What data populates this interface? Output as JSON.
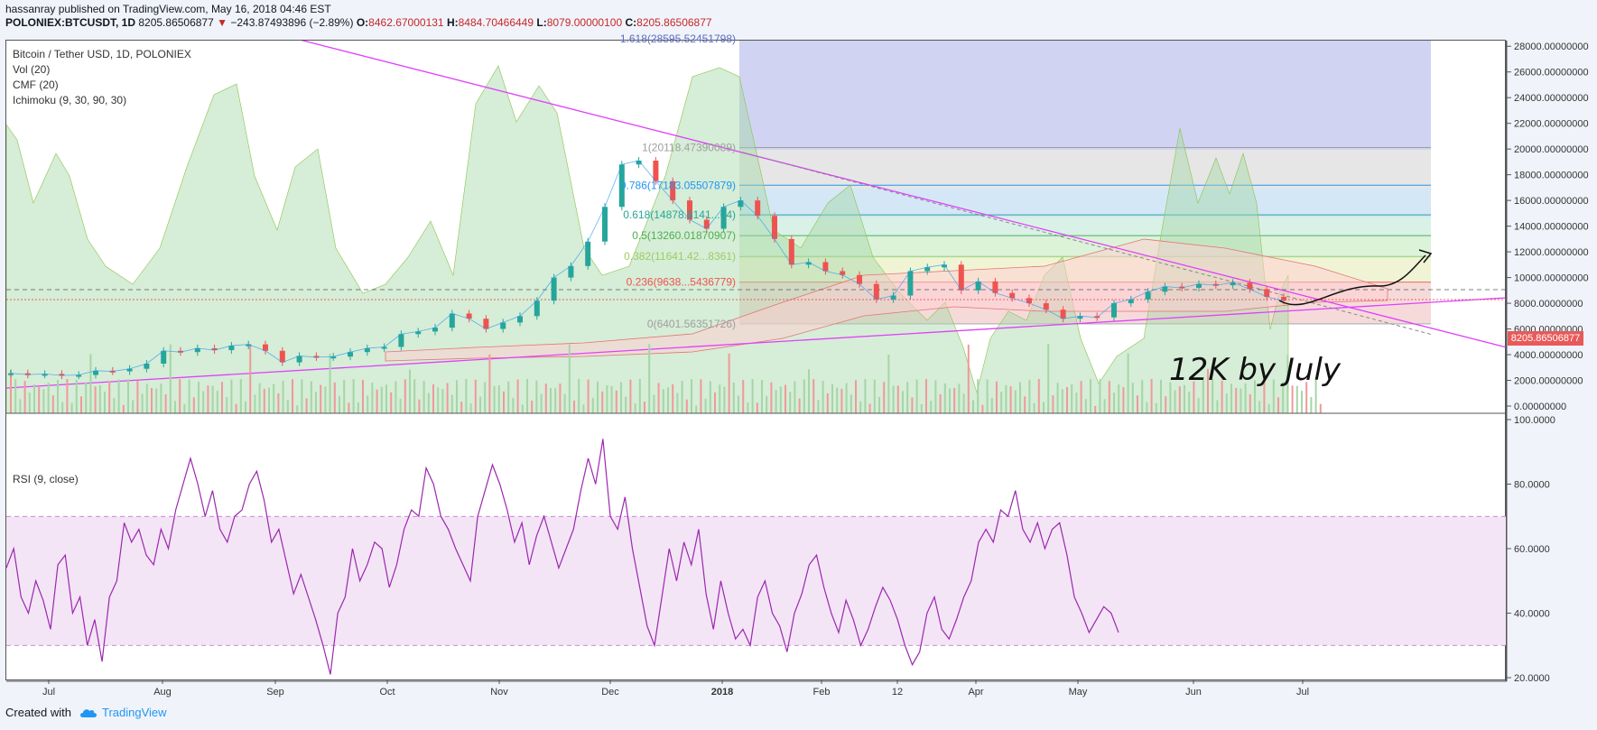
{
  "header": {
    "publisher": "hassanray",
    "published_text": "published on TradingView.com, May 16, 2018 04:46 EST",
    "symbol": "POLONIEX:BTCUSDT, 1D",
    "last": "8205.86506877",
    "change": "−243.87493896 (−2.89%)",
    "open_label": "O:",
    "open": "8462.67000131",
    "high_label": "H:",
    "high": "8484.70466449",
    "low_label": "L:",
    "low": "8079.00000100",
    "close_label": "C:",
    "close": "8205.86506877"
  },
  "legend": {
    "title": "Bitcoin / Tether USD, 1D, POLONIEX",
    "vol": "Vol (20)",
    "cmf": "CMF (20)",
    "ichimoku": "Ichimoku (9, 30, 90, 30)",
    "rsi": "RSI (9, close)"
  },
  "annotation_text": "12K by July",
  "price_badge": "8205.86506877",
  "footer": {
    "created": "Created with",
    "brand": "TradingView"
  },
  "colors": {
    "accent": "#2196f3",
    "price_down": "#c62828",
    "trendline": "#e040fb",
    "rsi_line": "#9c27b0",
    "rsi_band": "#f3e5f5",
    "vol_cloud": "#a5d6a7"
  },
  "chart_data": [
    {
      "type": "line",
      "title": "Bitcoin / Tether USD, 1D, POLONIEX",
      "x_ticks": [
        "Jul",
        "Aug",
        "Sep",
        "Oct",
        "Nov",
        "Dec",
        "2018",
        "Feb",
        "12",
        "Apr",
        "May",
        "Jun",
        "Jul"
      ],
      "y_ticks": [
        "28000.00000000",
        "26000.00000000",
        "24000.00000000",
        "22000.00000000",
        "20000.00000000",
        "18000.00000000",
        "16000.00000000",
        "14000.00000000",
        "12000.00000000",
        "10000.00000000",
        "8000.00000000",
        "6000.00000000",
        "4000.00000000",
        "2000.00000000",
        "0.00000000"
      ],
      "ylim": [
        0,
        29000
      ],
      "series": [
        {
          "values": [
            2550,
            2450,
            2500,
            2380,
            2420,
            2750,
            2700,
            2900,
            3300,
            4300,
            4200,
            4500,
            4350,
            4700,
            4800,
            4300,
            3400,
            3900,
            3800,
            3850,
            4200,
            4500,
            4600,
            5600,
            5800,
            6100,
            7200,
            6800,
            6000,
            6500,
            7000,
            8200,
            10000,
            10900,
            12800,
            15500,
            18800,
            19100,
            17500,
            16000,
            14500,
            13800,
            15500,
            16000,
            14800,
            13000,
            11000,
            11200,
            10500,
            10200,
            9500,
            8300,
            8600,
            10500,
            10800,
            11000,
            9000,
            9700,
            8800,
            8400,
            8000,
            7500,
            6800,
            7000,
            6900,
            8000,
            8300,
            8900,
            9300,
            9200,
            9500,
            9400,
            9600,
            9100,
            8500,
            8200
          ]
        }
      ],
      "fib_levels": [
        {
          "label": "1.618(28595.52451798)",
          "value": 28595.52
        },
        {
          "label": "1(20118.47390089)",
          "value": 20118.47
        },
        {
          "label": "0.786(17183.05507879)",
          "value": 17183.06
        },
        {
          "label": "0.618(14878.6141...64)",
          "value": 14878.61
        },
        {
          "label": "0.5(13260.01870907)",
          "value": 13260.02
        },
        {
          "label": "0.382(11641.42...8361)",
          "value": 11641.42
        },
        {
          "label": "0.236(9638...5436779)",
          "value": 9638.5
        },
        {
          "label": "0(6401.56351726)",
          "value": 6401.56
        }
      ]
    },
    {
      "type": "line",
      "title": "RSI (9, close)",
      "y_ticks": [
        "100.0000",
        "80.0000",
        "60.0000",
        "40.0000",
        "20.0000"
      ],
      "ylim": [
        20,
        100
      ],
      "band": [
        30,
        70
      ],
      "series": [
        {
          "values": [
            54,
            60,
            45,
            40,
            50,
            44,
            35,
            55,
            58,
            40,
            45,
            30,
            38,
            25,
            45,
            50,
            68,
            62,
            66,
            58,
            55,
            66,
            60,
            72,
            80,
            88,
            80,
            70,
            78,
            66,
            62,
            70,
            72,
            80,
            84,
            75,
            62,
            66,
            56,
            46,
            52,
            45,
            38,
            30,
            21,
            40,
            45,
            60,
            50,
            55,
            62,
            60,
            48,
            55,
            66,
            72,
            70,
            85,
            80,
            70,
            66,
            60,
            55,
            50,
            70,
            78,
            86,
            80,
            72,
            62,
            68,
            55,
            64,
            70,
            62,
            54,
            60,
            66,
            78,
            88,
            80,
            94,
            70,
            66,
            76,
            60,
            48,
            36,
            30,
            45,
            60,
            50,
            62,
            55,
            66,
            46,
            35,
            50,
            40,
            32,
            35,
            30,
            45,
            50,
            40,
            36,
            28,
            40,
            46,
            55,
            58,
            48,
            40,
            34,
            44,
            38,
            30,
            35,
            42,
            48,
            44,
            38,
            30,
            24,
            28,
            40,
            45,
            35,
            32,
            38,
            45,
            50,
            62,
            66,
            62,
            72,
            70,
            78,
            66,
            62,
            68,
            60,
            66,
            68,
            58,
            45,
            40,
            34,
            38,
            42,
            40,
            34
          ]
        }
      ]
    }
  ]
}
